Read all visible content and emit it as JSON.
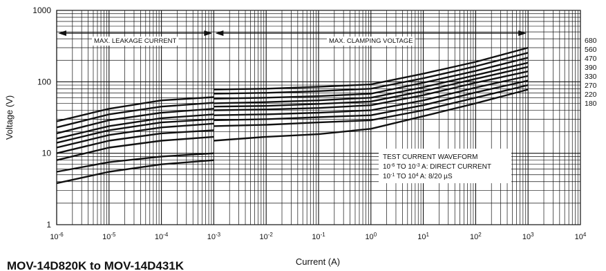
{
  "figure_caption": "MOV-14D820K to MOV-14D431K",
  "chart_data": {
    "type": "line",
    "title": "",
    "xlabel": "Current (A)",
    "ylabel": "Voltage (V)",
    "x_scale": "log",
    "y_scale": "log",
    "xlim": [
      1e-06,
      10000.0
    ],
    "ylim": [
      1,
      1000
    ],
    "x_ticks": [
      {
        "base": "10",
        "exp": "-6",
        "value": 1e-06
      },
      {
        "base": "10",
        "exp": "-5",
        "value": 1e-05
      },
      {
        "base": "10",
        "exp": "-4",
        "value": 0.0001
      },
      {
        "base": "10",
        "exp": "-3",
        "value": 0.001
      },
      {
        "base": "10",
        "exp": "-2",
        "value": 0.01
      },
      {
        "base": "10",
        "exp": "-1",
        "value": 0.1
      },
      {
        "base": "10",
        "exp": "0",
        "value": 1
      },
      {
        "base": "10",
        "exp": "1",
        "value": 10
      },
      {
        "base": "10",
        "exp": "2",
        "value": 100
      },
      {
        "base": "10",
        "exp": "3",
        "value": 1000
      },
      {
        "base": "10",
        "exp": "4",
        "value": 10000
      }
    ],
    "y_ticks": [
      {
        "label": "1",
        "value": 1
      },
      {
        "label": "10",
        "value": 10
      },
      {
        "label": "100",
        "value": 100
      },
      {
        "label": "1000",
        "value": 1000
      }
    ],
    "grid": true,
    "regions": [
      {
        "label": "MAX. LEAKAGE CURRENT",
        "x_range": [
          1e-06,
          0.001
        ],
        "y": 480
      },
      {
        "label": "MAX. CLAMPING VOLTAGE",
        "x_range": [
          0.001,
          1000.0
        ],
        "y": 480
      }
    ],
    "annotation": {
      "lines": [
        [
          "TEST CURRENT WAVEFORM"
        ],
        [
          "10",
          "-6",
          " TO 10",
          "-3",
          " A: DIRECT CURRENT"
        ],
        [
          "10",
          "-1",
          " TO 10",
          "4",
          " A: 8/20 µS"
        ]
      ]
    },
    "series": [
      {
        "name": "680",
        "leakage": {
          "x": [
            1e-06,
            1e-05,
            0.0001,
            0.001
          ],
          "y": [
            28,
            42,
            55,
            61
          ]
        },
        "clamping": {
          "x": [
            0.001,
            0.01,
            0.1,
            1,
            10,
            100,
            1000
          ],
          "y": [
            78,
            80,
            85,
            92,
            130,
            190,
            300
          ]
        }
      },
      {
        "name": "560",
        "leakage": {
          "x": [
            1e-06,
            1e-05,
            0.0001,
            0.001
          ],
          "y": [
            23,
            35,
            45,
            51
          ]
        },
        "clamping": {
          "x": [
            0.001,
            0.01,
            0.1,
            1,
            10,
            100,
            1000
          ],
          "y": [
            68,
            70,
            74,
            80,
            112,
            165,
            255
          ]
        }
      },
      {
        "name": "470",
        "leakage": {
          "x": [
            1e-06,
            1e-05,
            0.0001,
            0.001
          ],
          "y": [
            19,
            29,
            37,
            42
          ]
        },
        "clamping": {
          "x": [
            0.001,
            0.01,
            0.1,
            1,
            10,
            100,
            1000
          ],
          "y": [
            58,
            60,
            63,
            68,
            97,
            142,
            218
          ]
        }
      },
      {
        "name": "390",
        "leakage": {
          "x": [
            1e-06,
            1e-05,
            0.0001,
            0.001
          ],
          "y": [
            16,
            24,
            31,
            35
          ]
        },
        "clamping": {
          "x": [
            0.001,
            0.01,
            0.1,
            1,
            10,
            100,
            1000
          ],
          "y": [
            50,
            52,
            55,
            60,
            84,
            124,
            185
          ]
        }
      },
      {
        "name": "330",
        "leakage": {
          "x": [
            1e-06,
            1e-05,
            0.0001,
            0.001
          ],
          "y": [
            14,
            21,
            27,
            30
          ]
        },
        "clamping": {
          "x": [
            0.001,
            0.01,
            0.1,
            1,
            10,
            100,
            1000
          ],
          "y": [
            45,
            46,
            49,
            53,
            74,
            110,
            162
          ]
        }
      },
      {
        "name": "270",
        "leakage": {
          "x": [
            1e-06,
            1e-05,
            0.0001,
            0.001
          ],
          "y": [
            12,
            18,
            23,
            26
          ]
        },
        "clamping": {
          "x": [
            0.001,
            0.01,
            0.1,
            1,
            10,
            100,
            1000
          ],
          "y": [
            40,
            41,
            43,
            47,
            65,
            97,
            140
          ]
        }
      },
      {
        "name": "220",
        "leakage": {
          "x": [
            1e-06,
            1e-05,
            0.0001,
            0.001
          ],
          "y": [
            10,
            15,
            19,
            21
          ]
        },
        "clamping": {
          "x": [
            0.001,
            0.01,
            0.1,
            1,
            10,
            100,
            1000
          ],
          "y": [
            34,
            35,
            37,
            40,
            55,
            83,
            121
          ]
        }
      },
      {
        "name": "180",
        "leakage": {
          "x": [
            1e-06,
            1e-05,
            0.0001,
            0.001
          ],
          "y": [
            8,
            12,
            15,
            17
          ]
        },
        "clamping": {
          "x": [
            0.001,
            0.01,
            0.1,
            1,
            10,
            100,
            1000
          ],
          "y": [
            29,
            30,
            32,
            34,
            47,
            71,
            104
          ]
        }
      },
      {
        "name": "",
        "leakage": {
          "x": [
            1e-06,
            1e-05,
            0.0001,
            0.001
          ],
          "y": [
            5.5,
            7.5,
            9,
            10
          ]
        },
        "clamping": {
          "x": [
            0.001,
            0.01,
            0.1,
            1,
            10,
            100,
            1000
          ],
          "y": [
            24,
            25,
            27,
            29,
            40,
            60,
            90
          ]
        }
      },
      {
        "name": "",
        "leakage": {
          "x": [
            1e-06,
            1e-05,
            0.0001,
            0.001
          ],
          "y": [
            3.8,
            5.5,
            7,
            8
          ]
        },
        "clamping": {
          "x": [
            0.001,
            0.01,
            0.1,
            1,
            10,
            100,
            1000
          ],
          "y": [
            15,
            17,
            18.5,
            22,
            33,
            50,
            78
          ]
        }
      }
    ]
  }
}
